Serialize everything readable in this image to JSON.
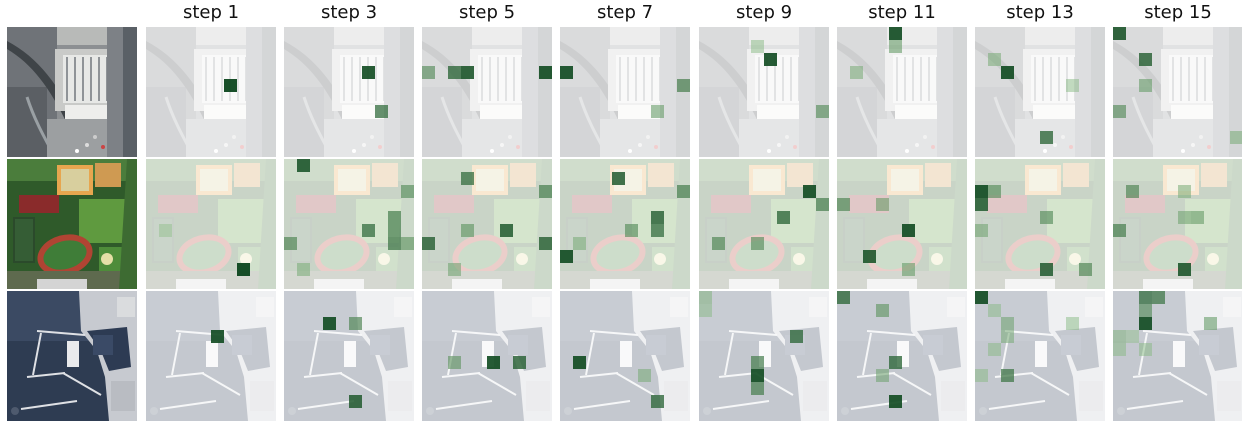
{
  "columns": [
    "step 1",
    "step 3",
    "step 5",
    "step 7",
    "step 9",
    "step 11",
    "step 13",
    "step 15"
  ],
  "rows": [
    {
      "scene": "industrial-rooftops",
      "steps": [
        [
          [
            6,
            4,
            1.0
          ]
        ],
        [
          [
            6,
            3,
            0.95
          ],
          [
            7,
            6,
            0.7
          ]
        ],
        [
          [
            0,
            3,
            0.5
          ],
          [
            2,
            3,
            0.75
          ],
          [
            3,
            3,
            0.9
          ],
          [
            9,
            3,
            0.95
          ]
        ],
        [
          [
            0,
            3,
            0.95
          ],
          [
            9,
            4,
            0.6
          ],
          [
            7,
            6,
            0.4
          ]
        ],
        [
          [
            5,
            2,
            0.95
          ],
          [
            4,
            1,
            0.2
          ],
          [
            9,
            6,
            0.5
          ]
        ],
        [
          [
            4,
            0,
            0.95
          ],
          [
            4,
            1,
            0.4
          ],
          [
            1,
            3,
            0.3
          ]
        ],
        [
          [
            2,
            3,
            0.95
          ],
          [
            1,
            2,
            0.3
          ],
          [
            5,
            8,
            0.75
          ],
          [
            7,
            4,
            0.2
          ]
        ],
        [
          [
            0,
            0,
            0.9
          ],
          [
            2,
            2,
            0.8
          ],
          [
            0,
            6,
            0.5
          ],
          [
            2,
            4,
            0.4
          ],
          [
            9,
            8,
            0.3
          ]
        ]
      ]
    },
    {
      "scene": "sports-stadium",
      "steps": [
        [
          [
            7,
            8,
            1.0
          ],
          [
            1,
            5,
            0.15
          ]
        ],
        [
          [
            0,
            6,
            0.55
          ],
          [
            1,
            0,
            0.9
          ],
          [
            6,
            5,
            0.7
          ],
          [
            8,
            4,
            0.6
          ],
          [
            8,
            5,
            0.6
          ],
          [
            8,
            6,
            0.65
          ],
          [
            9,
            2,
            0.5
          ],
          [
            9,
            6,
            0.45
          ],
          [
            1,
            8,
            0.3
          ]
        ],
        [
          [
            0,
            6,
            0.8
          ],
          [
            3,
            1,
            0.7
          ],
          [
            6,
            5,
            0.85
          ],
          [
            9,
            2,
            0.6
          ],
          [
            9,
            6,
            0.8
          ],
          [
            3,
            5,
            0.45
          ],
          [
            2,
            8,
            0.35
          ]
        ],
        [
          [
            0,
            7,
            0.95
          ],
          [
            4,
            1,
            0.85
          ],
          [
            7,
            4,
            0.8
          ],
          [
            7,
            5,
            0.7
          ],
          [
            9,
            2,
            0.6
          ],
          [
            1,
            6,
            0.3
          ],
          [
            5,
            5,
            0.5
          ]
        ],
        [
          [
            8,
            2,
            0.95
          ],
          [
            6,
            4,
            0.75
          ],
          [
            1,
            6,
            0.55
          ],
          [
            4,
            6,
            0.5
          ],
          [
            9,
            3,
            0.6
          ]
        ],
        [
          [
            2,
            7,
            0.9
          ],
          [
            5,
            5,
            0.95
          ],
          [
            0,
            3,
            0.55
          ],
          [
            3,
            3,
            0.4
          ],
          [
            5,
            8,
            0.4
          ]
        ],
        [
          [
            0,
            2,
            0.95
          ],
          [
            0,
            3,
            0.85
          ],
          [
            1,
            2,
            0.5
          ],
          [
            5,
            4,
            0.5
          ],
          [
            5,
            8,
            0.85
          ],
          [
            8,
            8,
            0.55
          ],
          [
            0,
            5,
            0.35
          ]
        ],
        [
          [
            1,
            2,
            0.55
          ],
          [
            0,
            5,
            0.6
          ],
          [
            5,
            8,
            0.9
          ],
          [
            5,
            2,
            0.3
          ],
          [
            5,
            4,
            0.35
          ],
          [
            6,
            4,
            0.4
          ]
        ]
      ]
    },
    {
      "scene": "harbour-marina",
      "steps": [
        [
          [
            5,
            3,
            0.95
          ]
        ],
        [
          [
            3,
            2,
            0.95
          ],
          [
            5,
            2,
            0.55
          ],
          [
            5,
            8,
            0.85
          ]
        ],
        [
          [
            2,
            5,
            0.45
          ],
          [
            5,
            5,
            0.95
          ],
          [
            7,
            5,
            0.8
          ]
        ],
        [
          [
            1,
            5,
            0.95
          ],
          [
            6,
            6,
            0.3
          ],
          [
            7,
            8,
            0.75
          ]
        ],
        [
          [
            7,
            3,
            0.75
          ],
          [
            4,
            5,
            0.6
          ],
          [
            4,
            6,
            0.95
          ],
          [
            4,
            7,
            0.6
          ],
          [
            0,
            0,
            0.25
          ],
          [
            0,
            1,
            0.2
          ]
        ],
        [
          [
            0,
            0,
            0.75
          ],
          [
            3,
            1,
            0.45
          ],
          [
            4,
            5,
            0.75
          ],
          [
            4,
            8,
            0.95
          ],
          [
            3,
            6,
            0.35
          ]
        ],
        [
          [
            0,
            0,
            0.95
          ],
          [
            2,
            2,
            0.35
          ],
          [
            2,
            3,
            0.3
          ],
          [
            1,
            4,
            0.2
          ],
          [
            2,
            6,
            0.65
          ],
          [
            0,
            6,
            0.2
          ],
          [
            7,
            2,
            0.2
          ],
          [
            1,
            1,
            0.2
          ]
        ],
        [
          [
            2,
            0,
            0.7
          ],
          [
            3,
            0,
            0.65
          ],
          [
            2,
            2,
            0.95
          ],
          [
            2,
            1,
            0.5
          ],
          [
            7,
            2,
            0.4
          ],
          [
            0,
            3,
            0.25
          ],
          [
            0,
            4,
            0.2
          ],
          [
            1,
            3,
            0.15
          ],
          [
            2,
            4,
            0.2
          ]
        ]
      ]
    }
  ]
}
